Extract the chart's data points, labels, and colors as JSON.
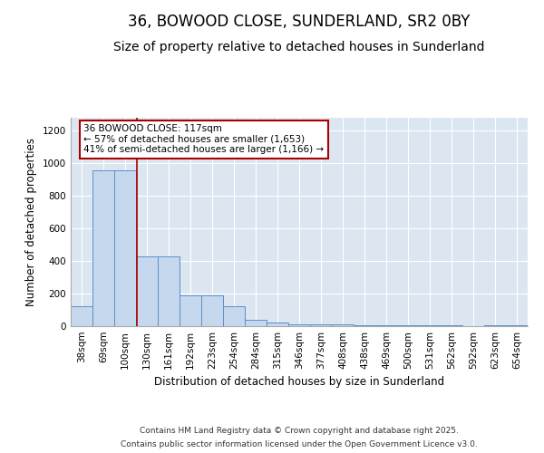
{
  "title_line1": "36, BOWOOD CLOSE, SUNDERLAND, SR2 0BY",
  "title_line2": "Size of property relative to detached houses in Sunderland",
  "xlabel": "Distribution of detached houses by size in Sunderland",
  "ylabel": "Number of detached properties",
  "categories": [
    "38sqm",
    "69sqm",
    "100sqm",
    "130sqm",
    "161sqm",
    "192sqm",
    "223sqm",
    "254sqm",
    "284sqm",
    "315sqm",
    "346sqm",
    "377sqm",
    "408sqm",
    "438sqm",
    "469sqm",
    "500sqm",
    "531sqm",
    "562sqm",
    "592sqm",
    "623sqm",
    "654sqm"
  ],
  "bar_values": [
    120,
    960,
    960,
    430,
    430,
    190,
    190,
    125,
    40,
    20,
    13,
    10,
    10,
    5,
    5,
    5,
    5,
    5,
    0,
    8,
    8
  ],
  "bar_color": "#c5d8ed",
  "bar_edge_color": "#5b8fc9",
  "background_color": "#dce6f1",
  "grid_color": "#ffffff",
  "vline_color": "#aa0000",
  "annotation_text": "36 BOWOOD CLOSE: 117sqm\n← 57% of detached houses are smaller (1,653)\n41% of semi-detached houses are larger (1,166) →",
  "annotation_box_color": "#ffffff",
  "annotation_box_edge": "#aa0000",
  "ylim": [
    0,
    1280
  ],
  "yticks": [
    0,
    200,
    400,
    600,
    800,
    1000,
    1200
  ],
  "footer_line1": "Contains HM Land Registry data © Crown copyright and database right 2025.",
  "footer_line2": "Contains public sector information licensed under the Open Government Licence v3.0.",
  "title_fontsize": 12,
  "subtitle_fontsize": 10,
  "axis_label_fontsize": 8.5,
  "tick_fontsize": 7.5,
  "annotation_fontsize": 7.5,
  "footer_fontsize": 6.5,
  "vline_x": 2.55
}
